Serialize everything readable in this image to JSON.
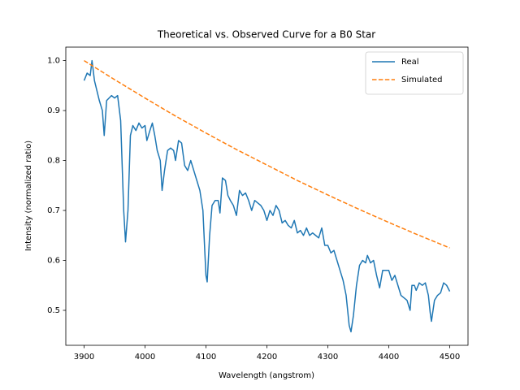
{
  "chart_data": {
    "type": "line",
    "title": "Theoretical vs. Observed Curve for a B0 Star",
    "x_label": "Wavelength (angstrom)",
    "y_label": "Intensity (normalized ratio)",
    "xlim": [
      3870,
      4530
    ],
    "ylim": [
      0.43,
      1.027
    ],
    "xticks": [
      3900,
      4000,
      4100,
      4200,
      4300,
      4400,
      4500
    ],
    "yticks": [
      0.5,
      0.6,
      0.7,
      0.8,
      0.9,
      {
        "value": 1,
        "label": "1.0"
      }
    ],
    "legend": "upper right",
    "series": [
      {
        "name": "Real",
        "color": "#1f77b4",
        "linestyle": "solid",
        "x": [
          3900,
          3905,
          3910,
          3913,
          3917,
          3925,
          3930,
          3933,
          3937,
          3945,
          3950,
          3955,
          3960,
          3965,
          3968,
          3972,
          3976,
          3980,
          3985,
          3990,
          3995,
          4000,
          4003,
          4008,
          4012,
          4016,
          4020,
          4025,
          4028,
          4032,
          4037,
          4042,
          4047,
          4050,
          4055,
          4060,
          4065,
          4070,
          4075,
          4080,
          4085,
          4090,
          4095,
          4098,
          4100,
          4102,
          4106,
          4110,
          4115,
          4120,
          4123,
          4127,
          4132,
          4136,
          4140,
          4145,
          4150,
          4155,
          4160,
          4165,
          4170,
          4175,
          4180,
          4185,
          4190,
          4195,
          4200,
          4205,
          4210,
          4215,
          4220,
          4225,
          4230,
          4235,
          4240,
          4245,
          4250,
          4255,
          4260,
          4265,
          4270,
          4275,
          4280,
          4285,
          4290,
          4295,
          4300,
          4305,
          4310,
          4315,
          4320,
          4325,
          4330,
          4335,
          4338,
          4342,
          4347,
          4352,
          4357,
          4362,
          4365,
          4370,
          4375,
          4380,
          4385,
          4390,
          4395,
          4400,
          4405,
          4410,
          4415,
          4420,
          4425,
          4430,
          4435,
          4438,
          4442,
          4445,
          4450,
          4455,
          4460,
          4465,
          4468,
          4470,
          4475,
          4480,
          4485,
          4490,
          4495,
          4500
        ],
        "values": [
          0.96,
          0.975,
          0.97,
          1.0,
          0.96,
          0.92,
          0.9,
          0.85,
          0.92,
          0.93,
          0.925,
          0.93,
          0.88,
          0.7,
          0.637,
          0.7,
          0.85,
          0.87,
          0.86,
          0.875,
          0.865,
          0.87,
          0.84,
          0.86,
          0.875,
          0.85,
          0.82,
          0.8,
          0.74,
          0.78,
          0.82,
          0.825,
          0.82,
          0.8,
          0.84,
          0.835,
          0.79,
          0.78,
          0.8,
          0.78,
          0.76,
          0.74,
          0.7,
          0.62,
          0.57,
          0.557,
          0.65,
          0.71,
          0.72,
          0.72,
          0.695,
          0.765,
          0.76,
          0.73,
          0.72,
          0.71,
          0.69,
          0.74,
          0.73,
          0.735,
          0.72,
          0.7,
          0.72,
          0.715,
          0.71,
          0.7,
          0.68,
          0.7,
          0.69,
          0.71,
          0.7,
          0.675,
          0.68,
          0.67,
          0.665,
          0.68,
          0.655,
          0.66,
          0.65,
          0.665,
          0.65,
          0.655,
          0.65,
          0.645,
          0.665,
          0.63,
          0.63,
          0.615,
          0.62,
          0.6,
          0.58,
          0.56,
          0.53,
          0.47,
          0.457,
          0.49,
          0.55,
          0.59,
          0.6,
          0.595,
          0.61,
          0.595,
          0.6,
          0.57,
          0.545,
          0.58,
          0.58,
          0.58,
          0.56,
          0.57,
          0.55,
          0.53,
          0.525,
          0.52,
          0.5,
          0.55,
          0.55,
          0.54,
          0.555,
          0.55,
          0.555,
          0.53,
          0.495,
          0.478,
          0.52,
          0.53,
          0.535,
          0.555,
          0.55,
          0.538
        ]
      },
      {
        "name": "Simulated",
        "color": "#ff7f0e",
        "linestyle": "dashed",
        "x": [
          3900,
          3950,
          4000,
          4050,
          4100,
          4150,
          4200,
          4250,
          4300,
          4350,
          4400,
          4450,
          4500
        ],
        "values": [
          1.0,
          0.962,
          0.925,
          0.889,
          0.855,
          0.822,
          0.791,
          0.76,
          0.731,
          0.703,
          0.676,
          0.65,
          0.625
        ]
      }
    ]
  }
}
